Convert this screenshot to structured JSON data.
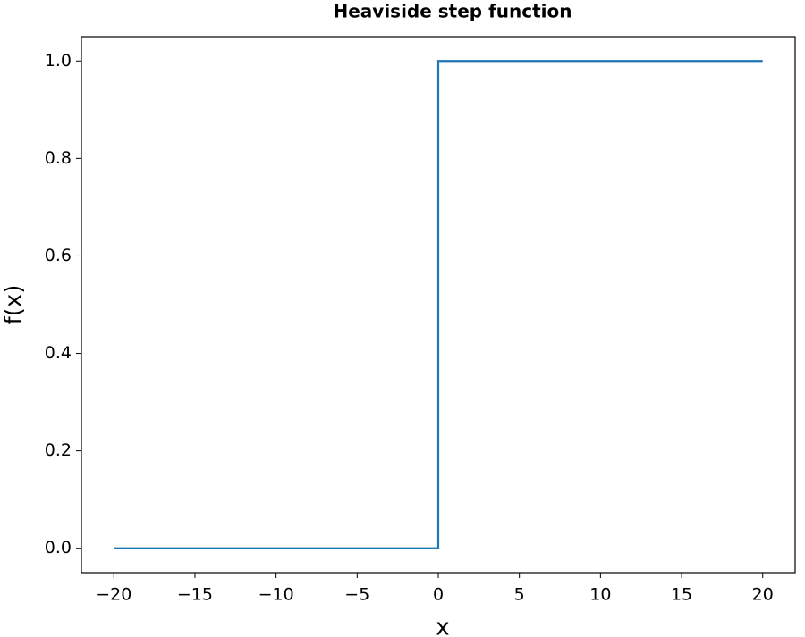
{
  "chart_data": {
    "type": "line",
    "title": "Heaviside step function",
    "xlabel": "x",
    "ylabel": "f(x)",
    "x": [
      -20,
      0,
      0,
      20
    ],
    "series": [
      {
        "color": "#1f77b4",
        "values": [
          0,
          0,
          1,
          1
        ]
      }
    ],
    "xlim": [
      -22,
      22
    ],
    "xticks": [
      {
        "value": -20,
        "label": "−20"
      },
      {
        "value": -15,
        "label": "−15"
      },
      {
        "value": -10,
        "label": "−10"
      },
      {
        "value": -5,
        "label": "−5"
      },
      0,
      5,
      10,
      15,
      20
    ],
    "ylim": [
      -0.05,
      1.05
    ],
    "yticks": [
      {
        "value": 0,
        "label": "0.0"
      },
      0.2,
      0.4,
      0.6,
      0.8,
      {
        "value": 1,
        "label": "1.0"
      }
    ],
    "grid": false
  }
}
